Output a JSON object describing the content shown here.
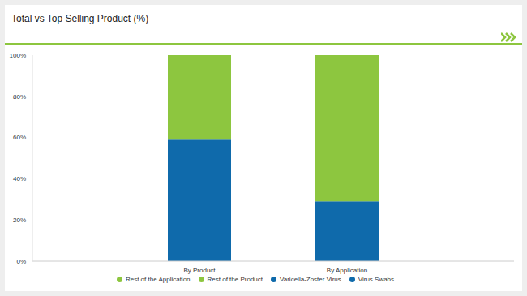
{
  "chart_data": {
    "type": "bar",
    "title": "Total vs Top Selling Product (%)",
    "categories": [
      "By Product",
      "By Application"
    ],
    "series": [
      {
        "name": "Varicella-Zoster Virus",
        "color": "#0f6aab",
        "values": [
          null,
          29
        ]
      },
      {
        "name": "Rest of the Application",
        "color": "#8dc63f",
        "values": [
          null,
          71
        ]
      },
      {
        "name": "Virus Swabs",
        "color": "#0f6aab",
        "values": [
          59,
          null
        ]
      },
      {
        "name": "Rest of the Product",
        "color": "#8dc63f",
        "values": [
          41,
          null
        ]
      }
    ],
    "stacked": true,
    "ylim": [
      0,
      100
    ],
    "yticks": [
      {
        "value": 0,
        "label": "0%"
      },
      {
        "value": 20,
        "label": "20%"
      },
      {
        "value": 40,
        "label": "40%"
      },
      {
        "value": 60,
        "label": "60%"
      },
      {
        "value": 80,
        "label": "80%"
      },
      {
        "value": 100,
        "label": "100%"
      }
    ],
    "grid": false,
    "legend": "bottom"
  }
}
